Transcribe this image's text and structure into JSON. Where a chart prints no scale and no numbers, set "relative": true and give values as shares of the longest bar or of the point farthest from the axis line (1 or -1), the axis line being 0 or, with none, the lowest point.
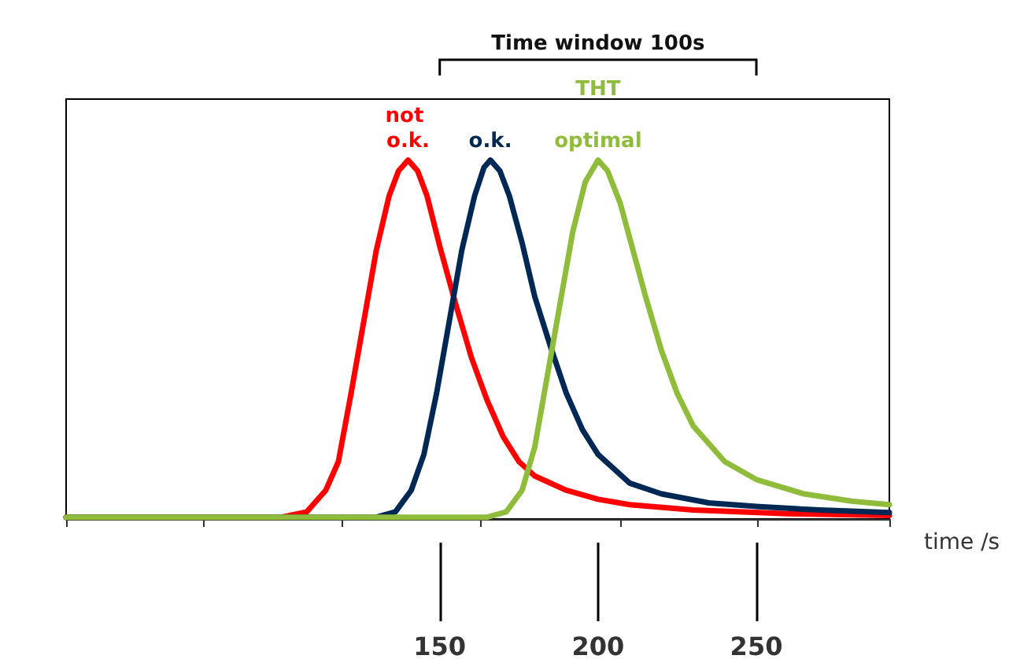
{
  "chart_data": {
    "type": "line",
    "relative": true,
    "xlabel": "time /s",
    "xlim": [
      32,
      292
    ],
    "xticks": [
      {
        "value": 32,
        "label": null
      },
      {
        "value": 75.5,
        "label": null
      },
      {
        "value": 119,
        "label": null
      },
      {
        "value": 163,
        "label": null
      },
      {
        "value": 207,
        "label": null
      },
      {
        "value": 250.5,
        "label": null
      },
      {
        "value": 292,
        "label": null
      },
      150,
      200,
      250
    ],
    "annotations": [
      "Time window 100s",
      "THT"
    ],
    "marker": "none",
    "line_style": "solid",
    "grid": false,
    "legend": false,
    "series": [
      {
        "name": "not o.k.",
        "color": "#ff0000",
        "x": [
          32,
          60,
          100,
          108,
          114,
          118,
          122,
          126,
          130,
          134,
          137,
          140,
          143,
          146,
          150,
          155,
          160,
          165,
          170,
          175,
          180,
          190,
          200,
          210,
          230,
          260,
          292
        ],
        "values": [
          0.005,
          0.005,
          0.005,
          0.02,
          0.08,
          0.16,
          0.35,
          0.55,
          0.75,
          0.9,
          0.97,
          1,
          0.97,
          0.9,
          0.76,
          0.6,
          0.45,
          0.33,
          0.23,
          0.16,
          0.12,
          0.08,
          0.055,
          0.04,
          0.025,
          0.015,
          0.01
        ]
      },
      {
        "name": "o.k.",
        "color": "#002855",
        "x": [
          32,
          130,
          136,
          141,
          145,
          149,
          153,
          157,
          161,
          164,
          166,
          169,
          172,
          176,
          180,
          185,
          190,
          195,
          200,
          210,
          220,
          235,
          250,
          270,
          292
        ],
        "values": [
          0.005,
          0.005,
          0.02,
          0.08,
          0.18,
          0.35,
          0.55,
          0.75,
          0.9,
          0.98,
          1,
          0.97,
          0.9,
          0.77,
          0.62,
          0.48,
          0.35,
          0.25,
          0.18,
          0.1,
          0.07,
          0.045,
          0.035,
          0.025,
          0.018
        ]
      },
      {
        "name": "optimal",
        "color": "#8fbc3a",
        "x": [
          32,
          165,
          171,
          176,
          180,
          184,
          188,
          192,
          196,
          200,
          203,
          207,
          211,
          215,
          220,
          225,
          230,
          240,
          250,
          265,
          280,
          292
        ],
        "values": [
          0.005,
          0.005,
          0.02,
          0.08,
          0.2,
          0.4,
          0.6,
          0.8,
          0.94,
          1,
          0.97,
          0.88,
          0.75,
          0.62,
          0.47,
          0.35,
          0.26,
          0.16,
          0.11,
          0.07,
          0.05,
          0.04
        ]
      }
    ]
  }
}
